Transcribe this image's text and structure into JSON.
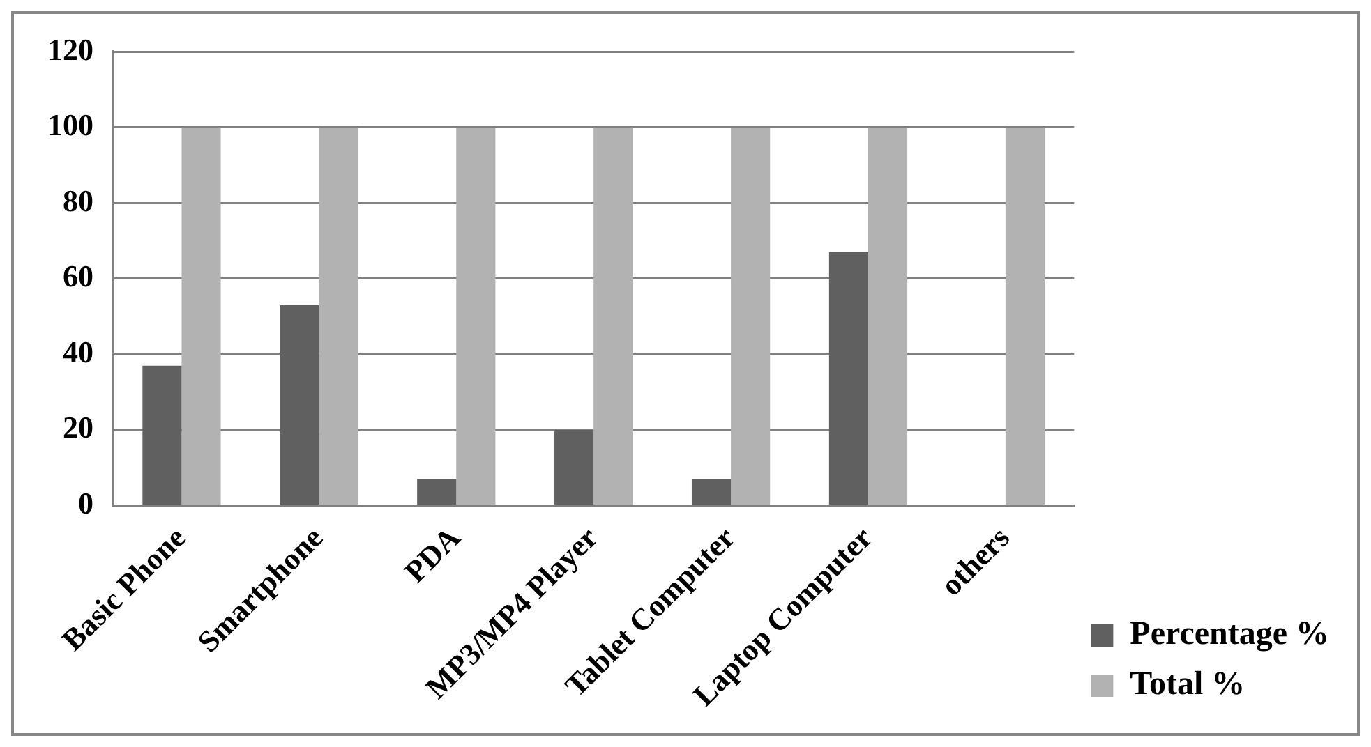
{
  "chart_data": {
    "type": "bar",
    "categories": [
      "Basic Phone",
      "Smartphone",
      "PDA",
      "MP3/MP4 Player",
      "Tablet Computer",
      "Laptop Computer",
      "others"
    ],
    "series": [
      {
        "name": "Percentage %",
        "color": "#606060",
        "values": [
          37,
          53,
          7,
          20,
          7,
          67,
          0
        ]
      },
      {
        "name": "Total %",
        "color": "#b2b2b2",
        "values": [
          100,
          100,
          100,
          100,
          100,
          100,
          100
        ]
      }
    ],
    "ylim": [
      0,
      120
    ],
    "yticks": [
      0,
      20,
      40,
      60,
      80,
      100,
      120
    ],
    "grid": "y",
    "legend": "right"
  }
}
